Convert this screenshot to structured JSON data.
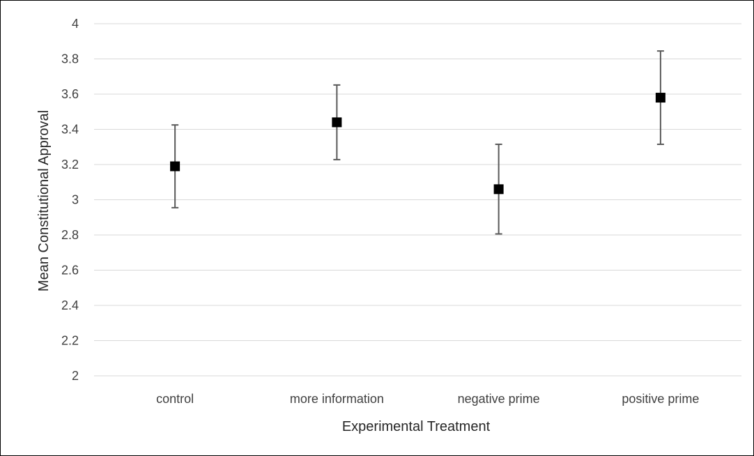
{
  "chart_data": {
    "type": "scatter",
    "title": "",
    "xlabel": "Experimental Treatment",
    "ylabel": "Mean Constitutional Approval",
    "categories": [
      "control",
      "more information",
      "negative prime",
      "positive prime"
    ],
    "ylim": [
      2,
      4
    ],
    "yticks": [
      "2",
      "2.2",
      "2.4",
      "2.6",
      "2.8",
      "3",
      "3.2",
      "3.4",
      "3.6",
      "3.8",
      "4"
    ],
    "grid": true,
    "legend": "none",
    "series": [
      {
        "values": [
          3.19,
          3.44,
          3.06,
          3.58
        ],
        "error_low": [
          2.955,
          3.228,
          2.806,
          3.315
        ],
        "error_high": [
          3.425,
          3.652,
          3.315,
          3.845
        ]
      }
    ],
    "colors": {
      "marker": "#000000",
      "error_bar": "#595959",
      "grid": "#d9d9d9"
    }
  }
}
